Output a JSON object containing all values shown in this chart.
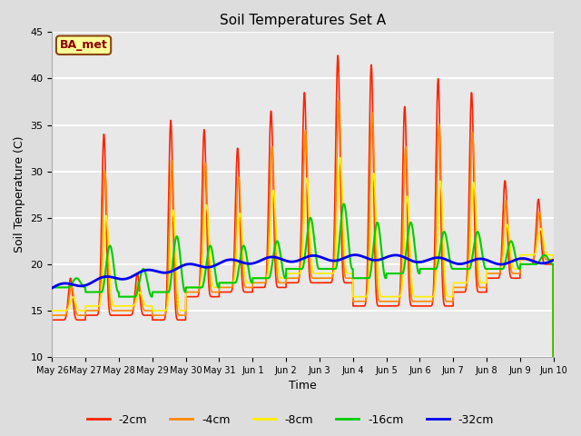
{
  "title": "Soil Temperatures Set A",
  "xlabel": "Time",
  "ylabel": "Soil Temperature (C)",
  "ylim": [
    10,
    45
  ],
  "background_color": "#e8e8e8",
  "plot_bg_color": "#e8e8e8",
  "legend_label": "BA_met",
  "legend_entries": [
    "-2cm",
    "-4cm",
    "-8cm",
    "-16cm",
    "-32cm"
  ],
  "line_colors": [
    "#ff2200",
    "#ff8800",
    "#ffee00",
    "#00cc00",
    "#0000ee"
  ],
  "tick_labels": [
    "May 26",
    "May 27",
    "May 28",
    "May 29",
    "May 30",
    "May 31",
    "Jun 1",
    "Jun 2",
    "Jun 3",
    "Jun 4",
    "Jun 5",
    "Jun 6",
    "Jun 7",
    "Jun 8",
    "Jun 9",
    "Jun 10"
  ],
  "num_days": 15,
  "points_per_day": 144,
  "day_peaks_2cm": [
    18.5,
    34.0,
    19.0,
    35.5,
    34.5,
    32.5,
    36.5,
    38.5,
    42.5,
    41.5,
    37.0,
    40.0,
    38.5,
    29.0,
    27.0
  ],
  "day_mins_2cm": [
    14.0,
    14.5,
    14.5,
    14.0,
    16.5,
    17.0,
    17.5,
    18.0,
    18.0,
    15.5,
    15.5,
    15.5,
    17.0,
    18.5,
    20.0
  ],
  "peak_time": 0.55,
  "sharpness": 6.0
}
